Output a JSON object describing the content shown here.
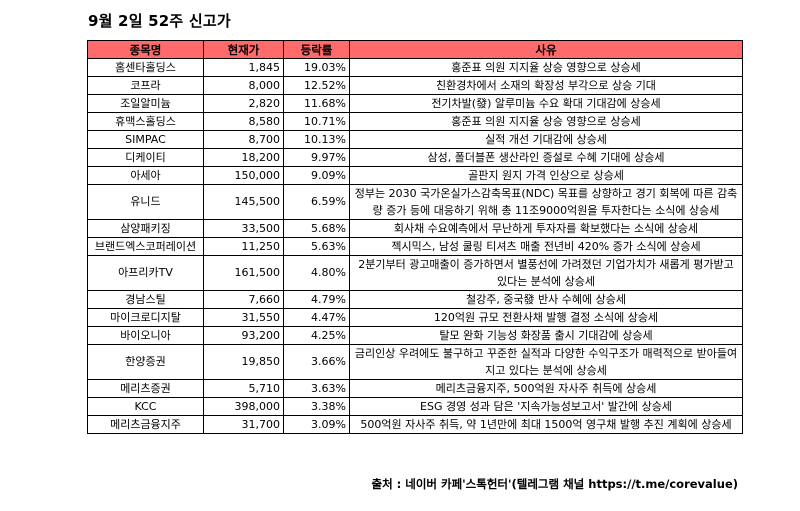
{
  "title": "9월 2일 52주 신고가",
  "headers": {
    "name": "종목명",
    "price": "현재가",
    "change": "등락률",
    "reason": "사유"
  },
  "rows": [
    {
      "name": "홈센타홀딩스",
      "price": "1,845",
      "change": "19.03%",
      "reason": "홍준표 의원 지지율 상승 영향으로 상승세"
    },
    {
      "name": "코프라",
      "price": "8,000",
      "change": "12.52%",
      "reason": "친환경차에서 소재의 확장성 부각으로 상승 기대"
    },
    {
      "name": "조일알미늄",
      "price": "2,820",
      "change": "11.68%",
      "reason": "전기차발(發) 알루미늄 수요 확대 기대감에 상승세"
    },
    {
      "name": "휴맥스홀딩스",
      "price": "8,580",
      "change": "10.71%",
      "reason": "홍준표 의원 지지율 상승 영향으로 상승세"
    },
    {
      "name": "SIMPAC",
      "price": "8,700",
      "change": "10.13%",
      "reason": "실적 개선 기대감에 상승세"
    },
    {
      "name": "디케이티",
      "price": "18,200",
      "change": "9.97%",
      "reason": "삼성, 폴더블폰 생산라인 증설로 수혜 기대에 상승세"
    },
    {
      "name": "아세아",
      "price": "150,000",
      "change": "9.09%",
      "reason": "골판지 원지 가격 인상으로 상승세"
    },
    {
      "name": "유니드",
      "price": "145,500",
      "change": "6.59%",
      "reason": "정부는 2030 국가온실가스감축목표(NDC) 목표를 상향하고 경기 회복에 따른 감축량 증가 등에 대응하기 위해 총 11조9000억원을 투자한다는 소식에 상승세"
    },
    {
      "name": "삼양패키징",
      "price": "33,500",
      "change": "5.68%",
      "reason": "회사채 수요예측에서 무난하게 투자자를 확보했다는 소식에 상승세"
    },
    {
      "name": "브랜드엑스코퍼레이션",
      "price": "11,250",
      "change": "5.63%",
      "reason": "젝시믹스, 남성 쿨링 티셔츠 매출 전년비 420% 증가 소식에 상승세"
    },
    {
      "name": "아프리카TV",
      "price": "161,500",
      "change": "4.80%",
      "reason": "2분기부터 광고매출이 증가하면서 별풍선에 가려졌던 기업가치가 새롭게 평가받고 있다는 분석에 상승세"
    },
    {
      "name": "경남스틸",
      "price": "7,660",
      "change": "4.79%",
      "reason": "철강주, 중국發 반사 수혜에 상승세"
    },
    {
      "name": "마이크로디지탈",
      "price": "31,550",
      "change": "4.47%",
      "reason": "120억원 규모 전환사채 발행 결정 소식에 상승세"
    },
    {
      "name": "바이오니아",
      "price": "93,200",
      "change": "4.25%",
      "reason": "탈모 완화 기능성 화장품 출시 기대감에 상승세"
    },
    {
      "name": "한양증권",
      "price": "19,850",
      "change": "3.66%",
      "reason": "금리인상 우려에도 불구하고 꾸준한 실적과 다양한 수익구조가 매력적으로 받아들여지고 있다는 분석에 상승세"
    },
    {
      "name": "메리츠증권",
      "price": "5,710",
      "change": "3.63%",
      "reason": "메리츠금융지주, 500억원 자사주 취득에 상승세"
    },
    {
      "name": "KCC",
      "price": "398,000",
      "change": "3.38%",
      "reason": "ESG 경영 성과 담은 '지속가능성보고서' 발간에 상승세"
    },
    {
      "name": "메리츠금융지주",
      "price": "31,700",
      "change": "3.09%",
      "reason": "500억원 자사주 취득, 약 1년만에 최대 1500억 영구채 발행 추진 계획에 상승세"
    }
  ],
  "source": "출처 : 네이버 카페'스톡헌터'(텔레그램 채널 https://t.me/corevalue)",
  "colors": {
    "header_bg": "#ff6a6a",
    "border": "#000000"
  }
}
